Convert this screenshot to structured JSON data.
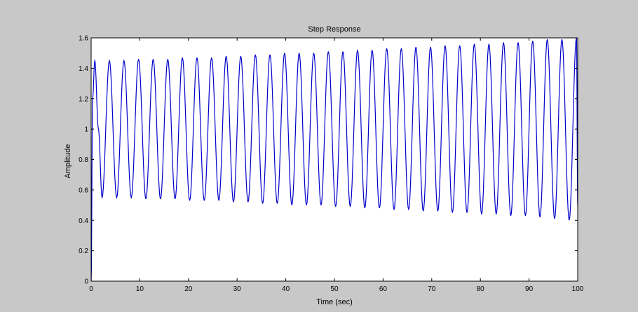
{
  "chart_data": {
    "type": "line",
    "title": "Step Response",
    "xlabel": "Time (sec)",
    "ylabel": "Amplitude",
    "xlim": [
      0,
      100
    ],
    "ylim": [
      0,
      1.6
    ],
    "xticks": [
      "0",
      "10",
      "20",
      "30",
      "40",
      "50",
      "60",
      "70",
      "80",
      "90",
      "100"
    ],
    "yticks": [
      "0",
      "0.2",
      "0.4",
      "0.6",
      "0.8",
      "1",
      "1.2",
      "1.4",
      "1.6"
    ],
    "grid": false,
    "series": [
      {
        "color": "#0000cc",
        "steady_state": 1.0,
        "initial_amplitude": 0.45,
        "final_amplitude": 0.6,
        "period": 3.0,
        "x": [
          0,
          0.3,
          0.75,
          1.5,
          2.25,
          3.75,
          5.25,
          6.75,
          8.25,
          9.75,
          11.25,
          12.75,
          14.25,
          15.75,
          17.25,
          18.75,
          20.25,
          21.75,
          23.25,
          24.75,
          26.25,
          27.75,
          29.25,
          30.75,
          32.25,
          33.75,
          35.25,
          36.75,
          38.25,
          39.75,
          41.25,
          42.75,
          44.25,
          45.75,
          47.25,
          48.75,
          50.25,
          51.75,
          53.25,
          54.75,
          56.25,
          57.75,
          59.25,
          60.75,
          62.25,
          63.75,
          65.25,
          66.75,
          68.25,
          69.75,
          71.25,
          72.75,
          74.25,
          75.75,
          77.25,
          78.75,
          80.25,
          81.75,
          83.25,
          84.75,
          86.25,
          87.75,
          89.25,
          90.75,
          92.25,
          93.75,
          95.25,
          96.75,
          98.25,
          99.75,
          100
        ],
        "y": [
          0,
          1.2,
          1.45,
          1.0,
          0.55,
          1.45,
          0.55,
          1.45,
          0.55,
          1.46,
          0.54,
          1.46,
          0.54,
          1.46,
          0.54,
          1.47,
          0.53,
          1.47,
          0.53,
          1.47,
          0.53,
          1.48,
          0.52,
          1.48,
          0.52,
          1.49,
          0.51,
          1.49,
          0.51,
          1.5,
          0.5,
          1.5,
          0.5,
          1.5,
          0.5,
          1.51,
          0.49,
          1.51,
          0.49,
          1.52,
          0.48,
          1.52,
          0.48,
          1.53,
          0.47,
          1.53,
          0.47,
          1.54,
          0.46,
          1.54,
          0.46,
          1.55,
          0.45,
          1.55,
          0.45,
          1.56,
          0.44,
          1.56,
          0.44,
          1.57,
          0.43,
          1.57,
          0.43,
          1.58,
          0.42,
          1.59,
          0.41,
          1.59,
          0.4,
          1.6,
          0.5
        ]
      }
    ]
  }
}
